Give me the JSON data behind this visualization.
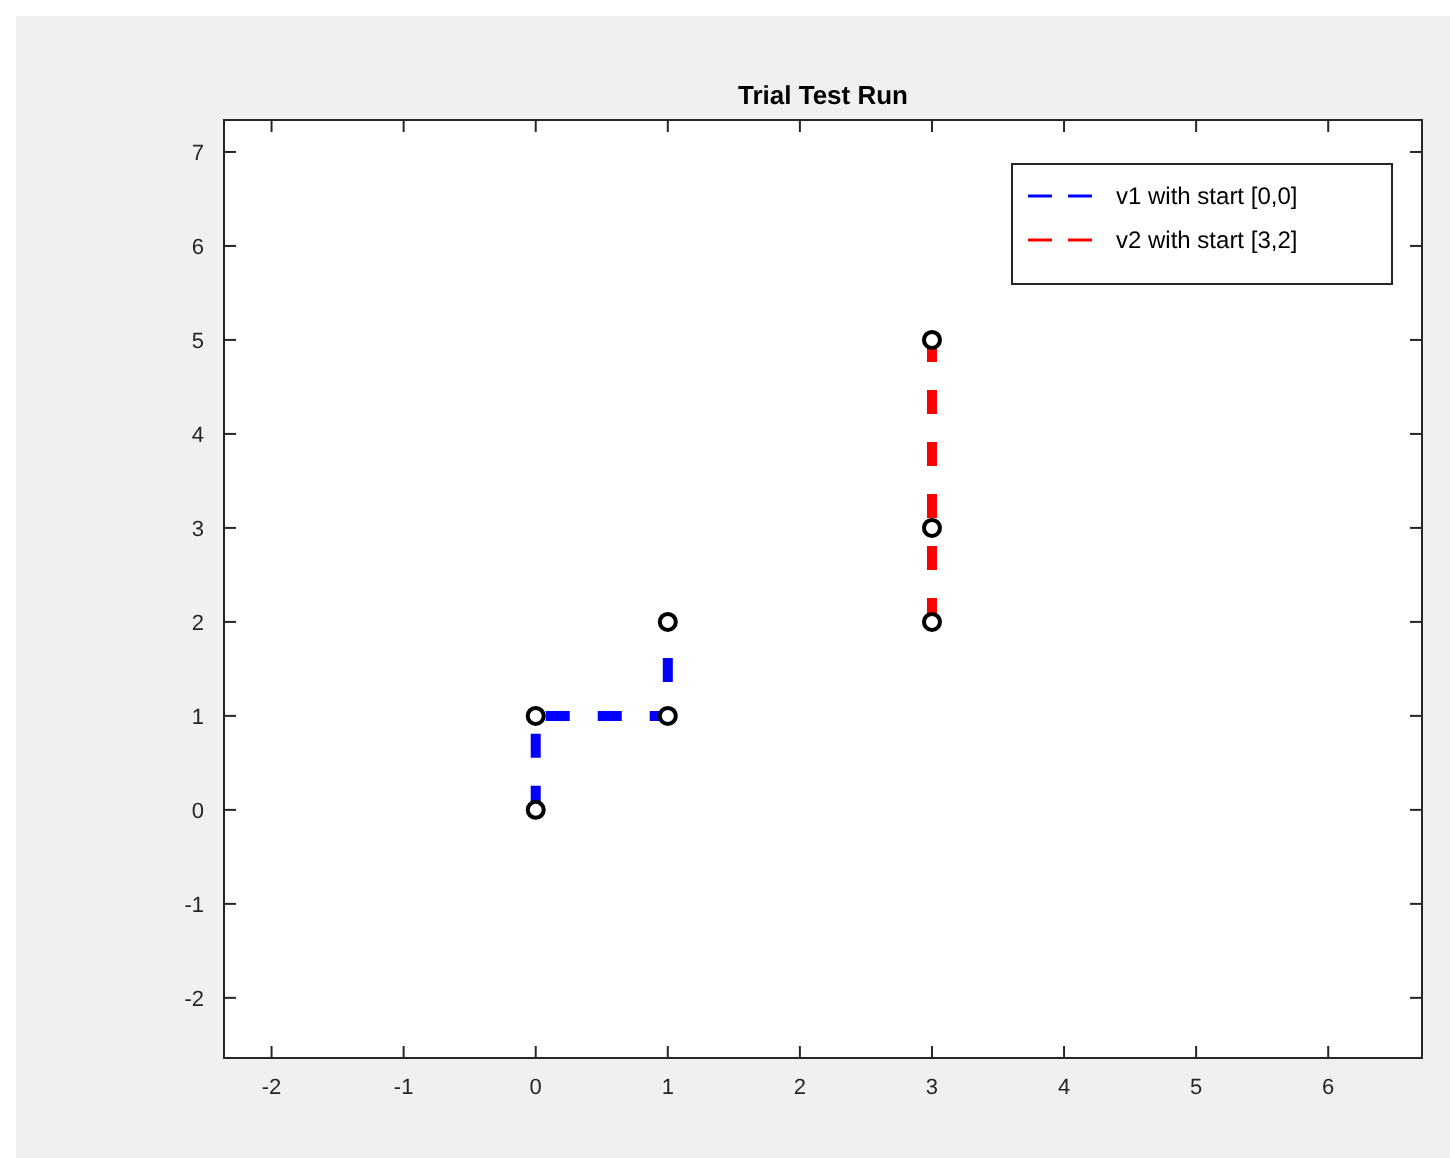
{
  "chart_data": {
    "type": "line",
    "title": "Trial Test Run",
    "marker": "circle",
    "line_style": "dashed",
    "legend": "top right",
    "grid": false,
    "xlim": [
      -2.36,
      6.71
    ],
    "ylim": [
      -2.64,
      7.34
    ],
    "xticks": [
      -2,
      -1,
      0,
      1,
      2,
      3,
      4,
      5,
      6
    ],
    "yticks": [
      -2,
      -1,
      0,
      1,
      2,
      3,
      4,
      5,
      6,
      7
    ],
    "series": [
      {
        "name": "v1 with start [0,0]",
        "color": "#0000ff",
        "x": [
          0,
          0,
          1,
          1
        ],
        "values": [
          0,
          1,
          1,
          2
        ]
      },
      {
        "name": "v2 with start [3,2]",
        "color": "#ff0000",
        "x": [
          3,
          3,
          3
        ],
        "values": [
          2,
          3,
          5
        ]
      }
    ]
  }
}
